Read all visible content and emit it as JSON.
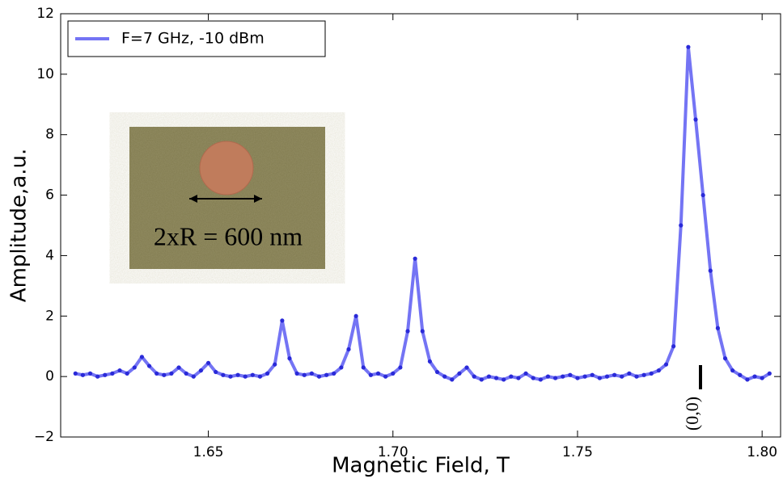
{
  "chart_data": {
    "type": "line",
    "xlabel": "Magnetic Field, T",
    "ylabel": "Amplitude,a.u.",
    "annotations": [
      "2xR = 600 nm",
      "(0,0)"
    ],
    "legend": "upper left",
    "grid": false,
    "xlim": [
      1.61,
      1.805
    ],
    "ylim": [
      -2,
      12
    ],
    "xticks": [
      1.65,
      {
        "value": 1.7,
        "label": "1.70"
      },
      1.75,
      {
        "value": 1.8,
        "label": "1.80"
      }
    ],
    "yticks": [
      {
        "value": -2,
        "label": "−2"
      },
      0,
      2,
      4,
      6,
      8,
      10,
      12
    ],
    "x": [
      1.614,
      1.616,
      1.618,
      1.62,
      1.622,
      1.624,
      1.626,
      1.628,
      1.63,
      1.632,
      1.634,
      1.636,
      1.638,
      1.64,
      1.642,
      1.644,
      1.646,
      1.648,
      1.65,
      1.652,
      1.654,
      1.656,
      1.658,
      1.66,
      1.662,
      1.664,
      1.666,
      1.668,
      1.67,
      1.672,
      1.674,
      1.676,
      1.678,
      1.68,
      1.682,
      1.684,
      1.686,
      1.688,
      1.69,
      1.692,
      1.694,
      1.696,
      1.698,
      1.7,
      1.702,
      1.704,
      1.706,
      1.708,
      1.71,
      1.712,
      1.714,
      1.716,
      1.718,
      1.72,
      1.722,
      1.724,
      1.726,
      1.728,
      1.73,
      1.732,
      1.734,
      1.736,
      1.738,
      1.74,
      1.742,
      1.744,
      1.746,
      1.748,
      1.75,
      1.752,
      1.754,
      1.756,
      1.758,
      1.76,
      1.762,
      1.764,
      1.766,
      1.768,
      1.77,
      1.772,
      1.774,
      1.776,
      1.778,
      1.78,
      1.782,
      1.784,
      1.786,
      1.788,
      1.79,
      1.792,
      1.794,
      1.796,
      1.798,
      1.8,
      1.802
    ],
    "series": [
      {
        "name": "F=7 GHz, -10 dBm",
        "color": "#4646f0",
        "values": [
          0.1,
          0.05,
          0.1,
          0.0,
          0.05,
          0.1,
          0.2,
          0.1,
          0.3,
          0.65,
          0.35,
          0.1,
          0.05,
          0.1,
          0.3,
          0.1,
          0.0,
          0.2,
          0.45,
          0.15,
          0.05,
          0.0,
          0.05,
          0.0,
          0.05,
          0.0,
          0.1,
          0.4,
          1.85,
          0.6,
          0.1,
          0.05,
          0.1,
          0.0,
          0.05,
          0.1,
          0.3,
          0.9,
          2.0,
          0.3,
          0.05,
          0.1,
          0.0,
          0.1,
          0.3,
          1.5,
          3.9,
          1.5,
          0.5,
          0.15,
          0.0,
          -0.1,
          0.1,
          0.3,
          0.0,
          -0.1,
          0.0,
          -0.05,
          -0.1,
          0.0,
          -0.05,
          0.1,
          -0.05,
          -0.1,
          0.0,
          -0.05,
          0.0,
          0.05,
          -0.05,
          0.0,
          0.05,
          -0.05,
          0.0,
          0.05,
          0.0,
          0.1,
          0.0,
          0.05,
          0.1,
          0.2,
          0.4,
          1.0,
          5.0,
          10.9,
          8.5,
          6.0,
          3.5,
          1.6,
          0.6,
          0.2,
          0.05,
          -0.1,
          0.0,
          -0.05,
          0.1
        ]
      }
    ]
  }
}
